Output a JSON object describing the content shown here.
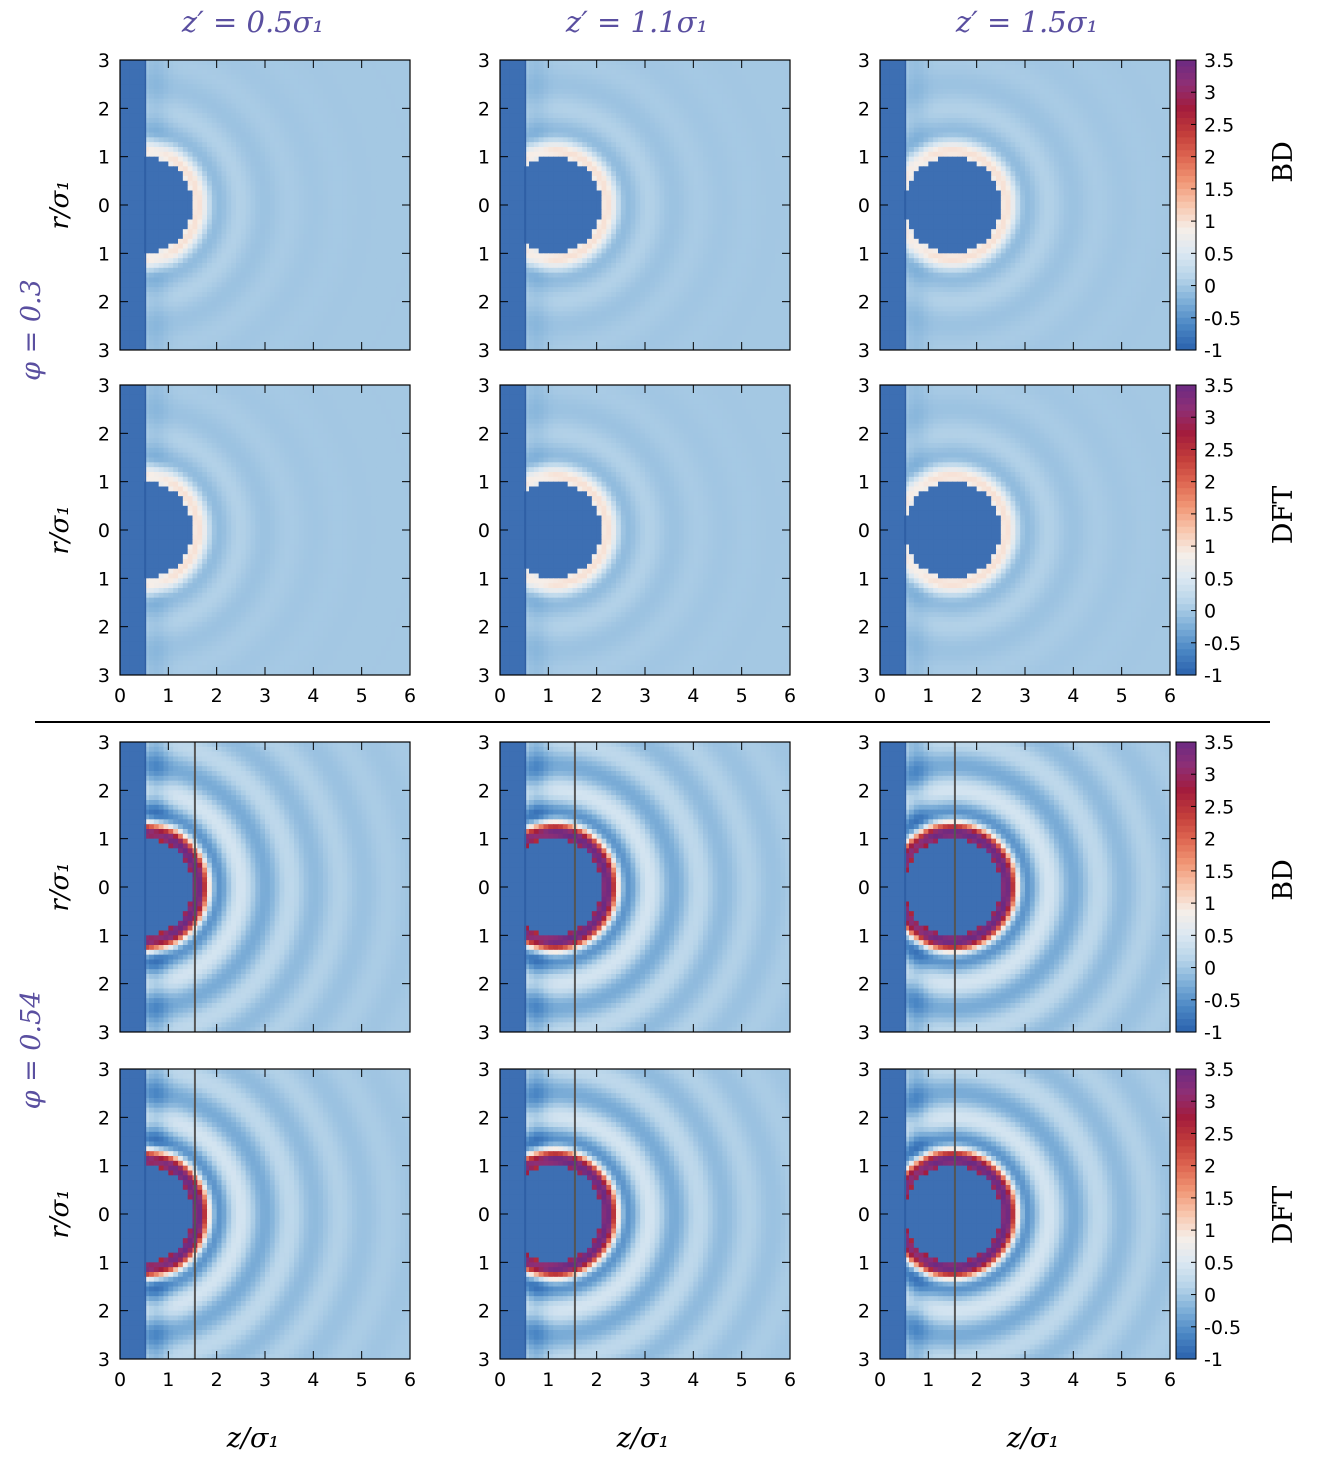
{
  "figure": {
    "column_titles": [
      "z′ = 0.5σ₁",
      "z′ = 1.1σ₁",
      "z′ = 1.5σ₁"
    ],
    "group_labels": [
      "φ = 0.3",
      "φ = 0.54"
    ],
    "row_labels": [
      "BD",
      "DFT",
      "BD",
      "DFT"
    ],
    "ylabel": "r/σ₁",
    "xlabel": "z/σ₁",
    "colors": {
      "title_color": "#5a4fa0",
      "wall_color": "#3d6fb3",
      "colormap": [
        "#2b62ad",
        "#4a86c4",
        "#7eafd8",
        "#b7d4e9",
        "#dbe8f2",
        "#f6eee8",
        "#f8c6ad",
        "#f09574",
        "#de6550",
        "#c13b3a",
        "#a31c3d",
        "#8e2f75",
        "#6b2a83"
      ]
    }
  },
  "chart_data": {
    "type": "heatmap",
    "description_fields": {
      "x_axis": {
        "label": "z/σ₁",
        "range": [
          0,
          6
        ],
        "ticks": [
          "0",
          "1",
          "2",
          "3",
          "4",
          "5",
          "6"
        ]
      },
      "y_axis": {
        "label": "r/σ₁",
        "range": [
          -3,
          3
        ],
        "ticks": [
          "3",
          "2",
          "1",
          "0",
          "1",
          "2",
          "3"
        ]
      },
      "colorbar": {
        "range": [
          -1,
          3.5
        ],
        "ticks": [
          "3.5",
          "3",
          "2.5",
          "2",
          "1.5",
          "1",
          "0.5",
          "0",
          "-0.5",
          "-1"
        ]
      }
    },
    "panels": [
      {
        "group": "φ = 0.3",
        "row": "BD",
        "column": "z′ = 0.5σ₁",
        "z_prime": 0.5,
        "wall_z": 0.5,
        "sphere_radius": 1.0,
        "max_value": 1.0,
        "vertical_line": false
      },
      {
        "group": "φ = 0.3",
        "row": "BD",
        "column": "z′ = 1.1σ₁",
        "z_prime": 1.1,
        "wall_z": 0.5,
        "sphere_radius": 1.0,
        "max_value": 1.0,
        "vertical_line": false
      },
      {
        "group": "φ = 0.3",
        "row": "BD",
        "column": "z′ = 1.5σ₁",
        "z_prime": 1.5,
        "wall_z": 0.5,
        "sphere_radius": 1.0,
        "max_value": 1.0,
        "vertical_line": false
      },
      {
        "group": "φ = 0.3",
        "row": "DFT",
        "column": "z′ = 0.5σ₁",
        "z_prime": 0.5,
        "wall_z": 0.5,
        "sphere_radius": 1.0,
        "max_value": 1.0,
        "vertical_line": false
      },
      {
        "group": "φ = 0.3",
        "row": "DFT",
        "column": "z′ = 1.1σ₁",
        "z_prime": 1.1,
        "wall_z": 0.5,
        "sphere_radius": 1.0,
        "max_value": 1.0,
        "vertical_line": false
      },
      {
        "group": "φ = 0.3",
        "row": "DFT",
        "column": "z′ = 1.5σ₁",
        "z_prime": 1.5,
        "wall_z": 0.5,
        "sphere_radius": 1.0,
        "max_value": 1.0,
        "vertical_line": false
      },
      {
        "group": "φ = 0.54",
        "row": "BD",
        "column": "z′ = 0.5σ₁",
        "z_prime": 0.5,
        "wall_z": 0.5,
        "sphere_radius": 1.0,
        "max_value": 3.5,
        "vertical_line": true,
        "line_z": 1.55
      },
      {
        "group": "φ = 0.54",
        "row": "BD",
        "column": "z′ = 1.1σ₁",
        "z_prime": 1.1,
        "wall_z": 0.5,
        "sphere_radius": 1.0,
        "max_value": 3.5,
        "vertical_line": true,
        "line_z": 1.55
      },
      {
        "group": "φ = 0.54",
        "row": "BD",
        "column": "z′ = 1.5σ₁",
        "z_prime": 1.5,
        "wall_z": 0.5,
        "sphere_radius": 1.0,
        "max_value": 3.5,
        "vertical_line": true,
        "line_z": 1.55
      },
      {
        "group": "φ = 0.54",
        "row": "DFT",
        "column": "z′ = 0.5σ₁",
        "z_prime": 0.5,
        "wall_z": 0.5,
        "sphere_radius": 1.0,
        "max_value": 3.5,
        "vertical_line": true,
        "line_z": 1.55
      },
      {
        "group": "φ = 0.54",
        "row": "DFT",
        "column": "z′ = 1.1σ₁",
        "z_prime": 1.1,
        "wall_z": 0.5,
        "sphere_radius": 1.0,
        "max_value": 3.5,
        "vertical_line": true,
        "line_z": 1.55
      },
      {
        "group": "φ = 0.54",
        "row": "DFT",
        "column": "z′ = 1.5σ₁",
        "z_prime": 1.5,
        "wall_z": 0.5,
        "sphere_radius": 1.0,
        "max_value": 3.5,
        "vertical_line": true,
        "line_z": 1.55
      }
    ]
  }
}
